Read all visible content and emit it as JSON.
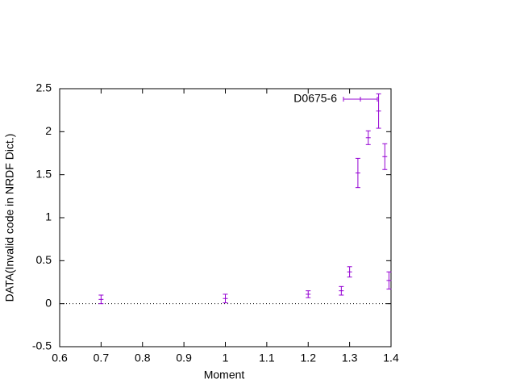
{
  "chart_data": {
    "type": "errorbar",
    "xlabel": "Moment",
    "ylabel": "DATA(Invalid code in NRDF Dict.)",
    "x": [
      0.7,
      1.0,
      1.2,
      1.28,
      1.3,
      1.32,
      1.345,
      1.37,
      1.385,
      1.395
    ],
    "series": [
      {
        "name": "D0675-6",
        "color": "#9400d3",
        "values": [
          0.05,
          0.06,
          0.11,
          0.15,
          0.37,
          1.52,
          1.93,
          2.24,
          1.71,
          0.27
        ],
        "errors": [
          0.05,
          0.05,
          0.04,
          0.05,
          0.06,
          0.17,
          0.08,
          0.2,
          0.15,
          0.1
        ]
      }
    ],
    "xlim": [
      0.6,
      1.4
    ],
    "xticks": [
      0.6,
      0.7,
      0.8,
      0.9,
      1,
      1.1,
      1.2,
      1.3,
      1.4
    ],
    "ylim": [
      -0.5,
      2.5
    ],
    "yticks": [
      -0.5,
      0,
      0.5,
      1,
      1.5,
      2,
      2.5
    ],
    "zero_line": true,
    "legend": "top-right"
  }
}
